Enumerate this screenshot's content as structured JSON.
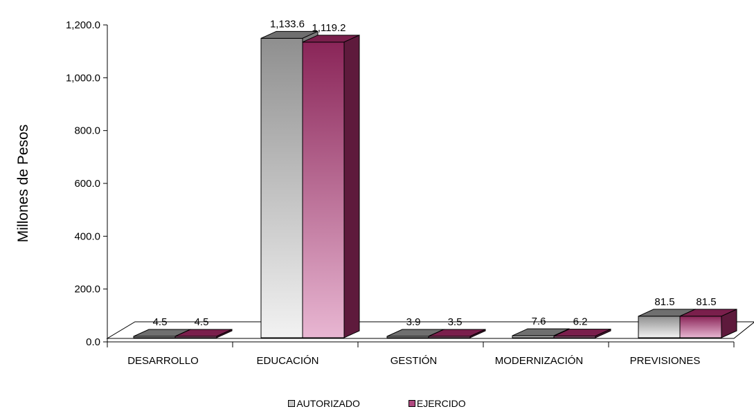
{
  "chart_data": {
    "type": "bar",
    "ylabel": "Millones de Pesos",
    "ylim": [
      0,
      1200
    ],
    "yticks": [
      "0.0",
      "200.0",
      "400.0",
      "600.0",
      "800.0",
      "1,000.0",
      "1,200.0"
    ],
    "categories": [
      "DESARROLLO",
      "EDUCACIÓN",
      "GESTIÓN",
      "MODERNIZACIÓN",
      "PREVISIONES"
    ],
    "series": [
      {
        "name": "AUTORIZADO",
        "values": [
          4.5,
          1133.6,
          3.9,
          7.6,
          81.5
        ],
        "labels": [
          "4.5",
          "1,133.6",
          "3.9",
          "7.6",
          "81.5"
        ],
        "color": "#9a9a9a"
      },
      {
        "name": "EJERCIDO",
        "values": [
          4.5,
          1119.2,
          3.5,
          6.2,
          81.5
        ],
        "labels": [
          "4.5",
          "1,119.2",
          "3.5",
          "6.2",
          "81.5"
        ],
        "color": "#8e2a5e"
      }
    ],
    "legend_position": "bottom",
    "grid": false
  }
}
